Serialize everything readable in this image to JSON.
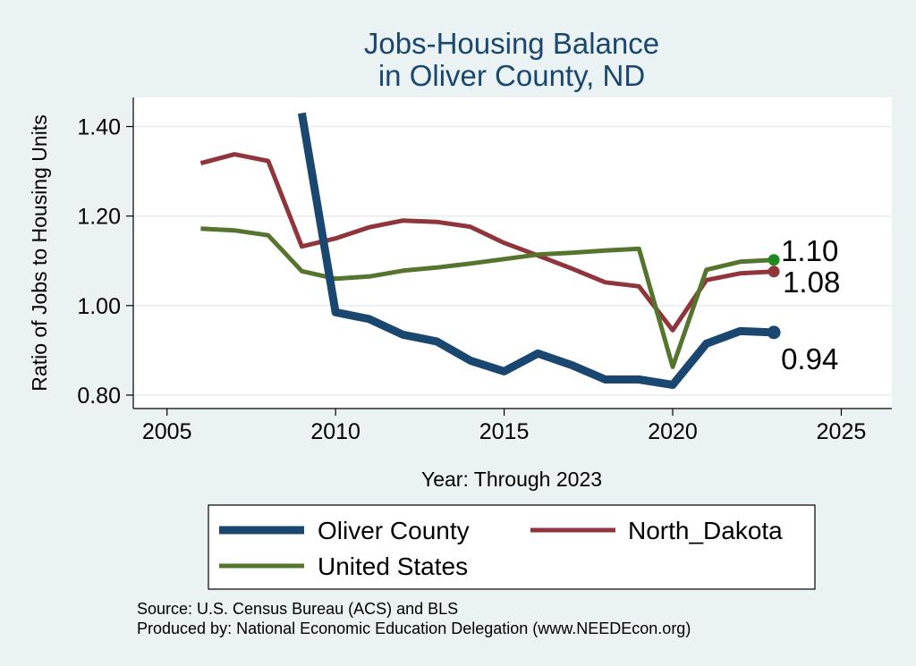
{
  "chart_data": {
    "type": "line",
    "title": [
      "Jobs-Housing Balance",
      "in Oliver County, ND"
    ],
    "xlabel": "Year: Through 2023",
    "ylabel": "Ratio of Jobs to Housing Units",
    "xlim": [
      2004,
      2026.5
    ],
    "ylim": [
      0.77,
      1.465
    ],
    "xticks": [
      2005,
      2010,
      2015,
      2020,
      2025
    ],
    "xtick_labels": [
      "2005",
      "2010",
      "2015",
      "2020",
      "2025"
    ],
    "yticks": [
      0.8,
      1.0,
      1.2,
      1.4
    ],
    "ytick_labels": [
      "0.80",
      "1.00",
      "1.20",
      "1.40"
    ],
    "grid": true,
    "series": [
      {
        "name": "Oliver County",
        "color": "#1a476f",
        "width": 9,
        "x": [
          2009,
          2010,
          2011,
          2012,
          2013,
          2014,
          2015,
          2016,
          2017,
          2018,
          2019,
          2020,
          2021,
          2022,
          2023
        ],
        "values": [
          1.43,
          0.985,
          0.97,
          0.935,
          0.92,
          0.877,
          0.853,
          0.893,
          0.867,
          0.835,
          0.835,
          0.823,
          0.915,
          0.943,
          0.94
        ],
        "end_label": "0.94"
      },
      {
        "name": "North_Dakota",
        "color": "#90353b",
        "width": 5,
        "x": [
          2006,
          2007,
          2008,
          2009,
          2010,
          2011,
          2012,
          2013,
          2014,
          2015,
          2016,
          2017,
          2018,
          2019,
          2020,
          2021,
          2022,
          2023
        ],
        "values": [
          1.318,
          1.338,
          1.323,
          1.132,
          1.15,
          1.175,
          1.19,
          1.187,
          1.176,
          1.14,
          1.112,
          1.083,
          1.052,
          1.043,
          0.945,
          1.057,
          1.072,
          1.076
        ],
        "end_label": "1.08"
      },
      {
        "name": "United States",
        "color": "#55752f",
        "width": 5,
        "x": [
          2006,
          2007,
          2008,
          2009,
          2010,
          2011,
          2012,
          2013,
          2014,
          2015,
          2016,
          2017,
          2018,
          2019,
          2020,
          2021,
          2022,
          2023
        ],
        "values": [
          1.172,
          1.168,
          1.157,
          1.077,
          1.06,
          1.065,
          1.078,
          1.085,
          1.094,
          1.104,
          1.114,
          1.118,
          1.123,
          1.127,
          0.863,
          1.08,
          1.098,
          1.102
        ],
        "end_label": "1.10",
        "end_marker_color": "#1e8a1e"
      }
    ],
    "legend": {
      "placement": "bottom",
      "entries": [
        "Oliver County",
        "North_Dakota",
        "United States"
      ]
    }
  },
  "notes": {
    "source": "Source: U.S. Census Bureau (ACS) and BLS",
    "produced_by": "Produced by: National Economic Education Delegation (www.NEEDEcon.org)"
  }
}
